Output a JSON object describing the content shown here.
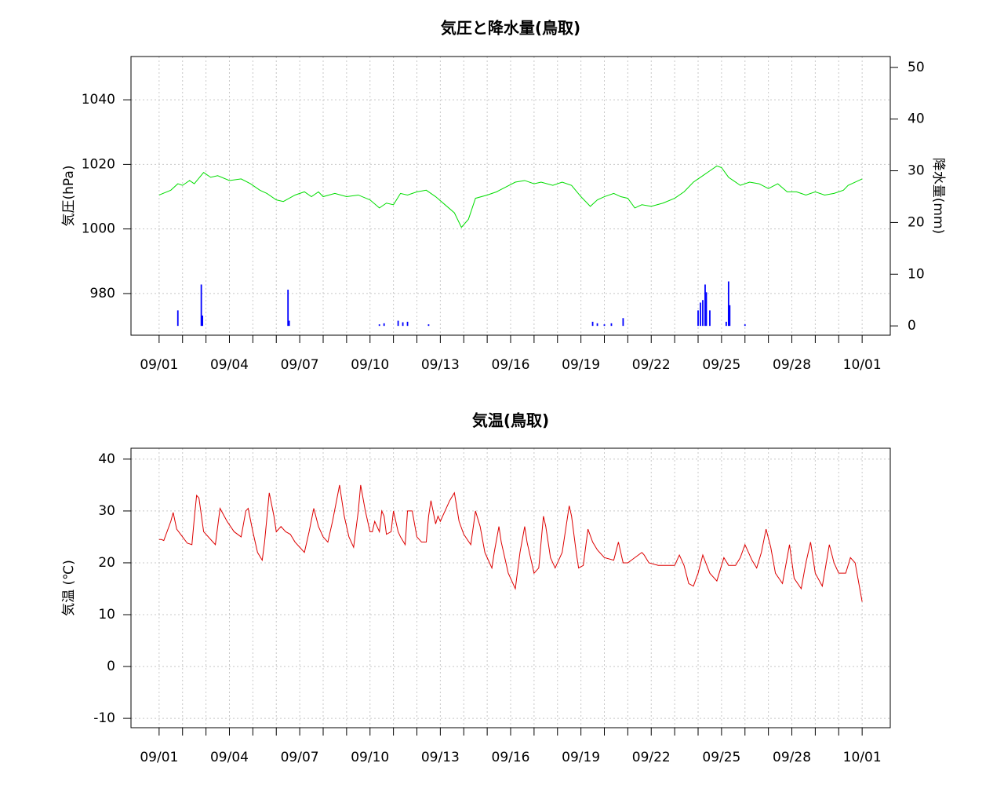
{
  "chart_data": [
    {
      "type": "line",
      "title": "気圧と降水量(鳥取)",
      "ylabel": "気圧(hPa)",
      "y2label": "降水量(mm)",
      "grid": true,
      "xlim": [
        -1.2,
        31.2
      ],
      "xticks": [
        {
          "value": 0,
          "label": "09/01"
        },
        {
          "value": 1,
          "label": null
        },
        {
          "value": 2,
          "label": null
        },
        {
          "value": 3,
          "label": "09/04"
        },
        {
          "value": 4,
          "label": null
        },
        {
          "value": 5,
          "label": null
        },
        {
          "value": 6,
          "label": "09/07"
        },
        {
          "value": 7,
          "label": null
        },
        {
          "value": 8,
          "label": null
        },
        {
          "value": 9,
          "label": "09/10"
        },
        {
          "value": 10,
          "label": null
        },
        {
          "value": 11,
          "label": null
        },
        {
          "value": 12,
          "label": "09/13"
        },
        {
          "value": 13,
          "label": null
        },
        {
          "value": 14,
          "label": null
        },
        {
          "value": 15,
          "label": "09/16"
        },
        {
          "value": 16,
          "label": null
        },
        {
          "value": 17,
          "label": null
        },
        {
          "value": 18,
          "label": "09/19"
        },
        {
          "value": 19,
          "label": null
        },
        {
          "value": 20,
          "label": null
        },
        {
          "value": 21,
          "label": "09/22"
        },
        {
          "value": 22,
          "label": null
        },
        {
          "value": 23,
          "label": null
        },
        {
          "value": 24,
          "label": "09/25"
        },
        {
          "value": 25,
          "label": null
        },
        {
          "value": 26,
          "label": null
        },
        {
          "value": 27,
          "label": "09/28"
        },
        {
          "value": 28,
          "label": null
        },
        {
          "value": 29,
          "label": null
        },
        {
          "value": 30,
          "label": "10/01"
        }
      ],
      "ylim": [
        967.1,
        1053.4
      ],
      "yticks": [
        980,
        1000,
        1020,
        1040
      ],
      "y2lim": [
        -1.8,
        52.1
      ],
      "y2ticks": [
        0,
        10,
        20,
        30,
        40,
        50
      ],
      "series": [
        {
          "type": "line",
          "color": "#00dd00",
          "x": [
            0,
            0.5,
            0.8,
            1.0,
            1.3,
            1.5,
            1.9,
            2.2,
            2.5,
            3.0,
            3.5,
            3.9,
            4.3,
            4.6,
            5.0,
            5.3,
            5.8,
            6.2,
            6.5,
            6.8,
            7.0,
            7.5,
            8.0,
            8.5,
            9.0,
            9.4,
            9.7,
            10.0,
            10.3,
            10.6,
            11.0,
            11.4,
            11.8,
            12.2,
            12.6,
            12.9,
            13.2,
            13.5,
            14.0,
            14.4,
            14.8,
            15.2,
            15.6,
            16.0,
            16.3,
            16.8,
            17.2,
            17.6,
            18.0,
            18.4,
            18.7,
            19.0,
            19.4,
            19.7,
            20.0,
            20.3,
            20.6,
            21.0,
            21.5,
            22.0,
            22.4,
            22.8,
            23.2,
            23.5,
            23.8,
            24.0,
            24.3,
            24.5,
            24.8,
            25.2,
            25.6,
            26.0,
            26.4,
            26.8,
            27.2,
            27.6,
            28.0,
            28.4,
            28.8,
            29.2,
            29.4,
            29.7,
            30
          ],
          "values": [
            1010.5,
            1012,
            1014,
            1013.5,
            1015,
            1014,
            1017.5,
            1016,
            1016.5,
            1015,
            1015.5,
            1014,
            1012,
            1011,
            1009,
            1008.5,
            1010.5,
            1011.5,
            1010,
            1011.5,
            1010,
            1011,
            1010,
            1010.5,
            1009,
            1006.5,
            1008,
            1007.5,
            1011,
            1010.5,
            1011.5,
            1012,
            1010,
            1007.5,
            1005,
            1000.5,
            1003,
            1009.5,
            1010.5,
            1011.5,
            1013,
            1014.5,
            1015,
            1014,
            1014.5,
            1013.5,
            1014.5,
            1013.5,
            1010,
            1007,
            1009,
            1010,
            1011,
            1010,
            1009.5,
            1006.5,
            1007.5,
            1007,
            1008,
            1009.5,
            1011.5,
            1014.5,
            1016.5,
            1018,
            1019.5,
            1019,
            1016,
            1015,
            1013.5,
            1014.5,
            1014,
            1012.5,
            1014,
            1011.5,
            1011.5,
            1010.5,
            1011.5,
            1010.5,
            1011,
            1012,
            1013.5,
            1014.5,
            1015.5
          ]
        },
        {
          "type": "bar",
          "axis": "y2",
          "color": "#0000ff",
          "x": [
            0.8,
            1.8,
            1.85,
            5.5,
            5.55,
            9.4,
            9.6,
            10.2,
            10.4,
            10.6,
            11.5,
            18.5,
            18.7,
            19.0,
            19.3,
            19.8,
            23.0,
            23.1,
            23.2,
            23.3,
            23.35,
            23.5,
            24.2,
            24.3,
            24.35,
            25.0
          ],
          "values": [
            3,
            8,
            2,
            7,
            1,
            0.3,
            0.5,
            1,
            0.7,
            0.8,
            0.3,
            0.8,
            0.5,
            0.3,
            0.5,
            1.5,
            3,
            4.5,
            5,
            8,
            6.5,
            3,
            0.8,
            8.6,
            4,
            0.3
          ]
        }
      ]
    },
    {
      "type": "line",
      "title": "気温(鳥取)",
      "ylabel": "気温 (℃)",
      "grid": true,
      "xlim": [
        -1.2,
        31.2
      ],
      "xticks": [
        {
          "value": 0,
          "label": "09/01"
        },
        {
          "value": 1,
          "label": null
        },
        {
          "value": 2,
          "label": null
        },
        {
          "value": 3,
          "label": "09/04"
        },
        {
          "value": 4,
          "label": null
        },
        {
          "value": 5,
          "label": null
        },
        {
          "value": 6,
          "label": "09/07"
        },
        {
          "value": 7,
          "label": null
        },
        {
          "value": 8,
          "label": null
        },
        {
          "value": 9,
          "label": "09/10"
        },
        {
          "value": 10,
          "label": null
        },
        {
          "value": 11,
          "label": null
        },
        {
          "value": 12,
          "label": "09/13"
        },
        {
          "value": 13,
          "label": null
        },
        {
          "value": 14,
          "label": null
        },
        {
          "value": 15,
          "label": "09/16"
        },
        {
          "value": 16,
          "label": null
        },
        {
          "value": 17,
          "label": null
        },
        {
          "value": 18,
          "label": "09/19"
        },
        {
          "value": 19,
          "label": null
        },
        {
          "value": 20,
          "label": null
        },
        {
          "value": 21,
          "label": "09/22"
        },
        {
          "value": 22,
          "label": null
        },
        {
          "value": 23,
          "label": null
        },
        {
          "value": 24,
          "label": "09/25"
        },
        {
          "value": 25,
          "label": null
        },
        {
          "value": 26,
          "label": null
        },
        {
          "value": 27,
          "label": "09/28"
        },
        {
          "value": 28,
          "label": null
        },
        {
          "value": 29,
          "label": null
        },
        {
          "value": 30,
          "label": "10/01"
        }
      ],
      "ylim": [
        -11.8,
        42.1
      ],
      "yticks": [
        -10,
        0,
        10,
        20,
        30,
        40
      ],
      "series": [
        {
          "type": "line",
          "color": "#dd0000",
          "x": [
            0,
            0.1,
            0.2,
            0.5,
            0.6,
            0.75,
            1.0,
            1.2,
            1.4,
            1.5,
            1.6,
            1.7,
            1.9,
            2.2,
            2.4,
            2.5,
            2.6,
            2.9,
            3.2,
            3.5,
            3.7,
            3.8,
            4.0,
            4.2,
            4.4,
            4.5,
            4.7,
            4.9,
            5.0,
            5.2,
            5.4,
            5.6,
            5.8,
            6.2,
            6.4,
            6.6,
            6.8,
            7.0,
            7.2,
            7.4,
            7.7,
            7.9,
            8.1,
            8.3,
            8.5,
            8.6,
            8.8,
            9.0,
            9.1,
            9.2,
            9.4,
            9.5,
            9.6,
            9.7,
            9.9,
            10.0,
            10.2,
            10.3,
            10.5,
            10.6,
            10.8,
            11.0,
            11.2,
            11.4,
            11.5,
            11.6,
            11.8,
            11.9,
            12.0,
            12.2,
            12.4,
            12.6,
            12.8,
            13.0,
            13.3,
            13.5,
            13.7,
            13.9,
            14.0,
            14.2,
            14.3,
            14.5,
            14.6,
            14.8,
            14.9,
            15.2,
            15.4,
            15.6,
            15.7,
            15.9,
            16.0,
            16.2,
            16.4,
            16.5,
            16.7,
            16.9,
            17.2,
            17.5,
            17.6,
            17.8,
            17.9,
            18.1,
            18.3,
            18.5,
            18.7,
            19.0,
            19.4,
            19.6,
            19.8,
            20.0,
            20.3,
            20.6,
            20.7,
            20.9,
            21.3,
            21.7,
            22.0,
            22.2,
            22.4,
            22.6,
            22.8,
            23.0,
            23.2,
            23.5,
            23.8,
            24.1,
            24.3,
            24.6,
            24.8,
            25.0,
            25.3,
            25.5,
            25.7,
            25.9,
            26.1,
            26.3,
            26.6,
            26.9,
            27.1,
            27.4,
            27.6,
            27.8,
            28.0,
            28.3,
            28.6,
            28.8,
            29.0,
            29.3,
            29.5,
            29.7,
            29.9,
            30
          ],
          "values": [
            24.5,
            24.5,
            24.3,
            28,
            29.7,
            26.5,
            25,
            23.8,
            23.5,
            28.5,
            33,
            32.5,
            26,
            24.5,
            23.5,
            27,
            30.5,
            28,
            26,
            25,
            30,
            30.5,
            26,
            22,
            20.5,
            24,
            33.5,
            29,
            26,
            27,
            26,
            25.5,
            24,
            22,
            26,
            30.5,
            27,
            25,
            24,
            28,
            35,
            29,
            25,
            23,
            30,
            35,
            30,
            26,
            26,
            28,
            26,
            30,
            29,
            25.5,
            26,
            30,
            26,
            25,
            23.5,
            30,
            30,
            25,
            24,
            24,
            29,
            32,
            27.5,
            29,
            28,
            30,
            32,
            33.5,
            28,
            25.5,
            23.5,
            30,
            27,
            22,
            21,
            19,
            22,
            27,
            24,
            20,
            18,
            15,
            22,
            27,
            24,
            20,
            18,
            19,
            29,
            27,
            21,
            19,
            22,
            31,
            29,
            22,
            19,
            19.5,
            26.5,
            24,
            22.5,
            21,
            20.5,
            24,
            20,
            20,
            21,
            22,
            21.5,
            20,
            19.5,
            19.5,
            19.5,
            21.5,
            19.5,
            16,
            15.5,
            18,
            21.5,
            18,
            16.5,
            21,
            19.5,
            19.5,
            21,
            23.5,
            20.5,
            19,
            22,
            26.5,
            23,
            18,
            16,
            23.5,
            17,
            15,
            20,
            24,
            18,
            15.5,
            23.5,
            20,
            18,
            18,
            21,
            20,
            15,
            12.5
          ]
        }
      ]
    }
  ]
}
